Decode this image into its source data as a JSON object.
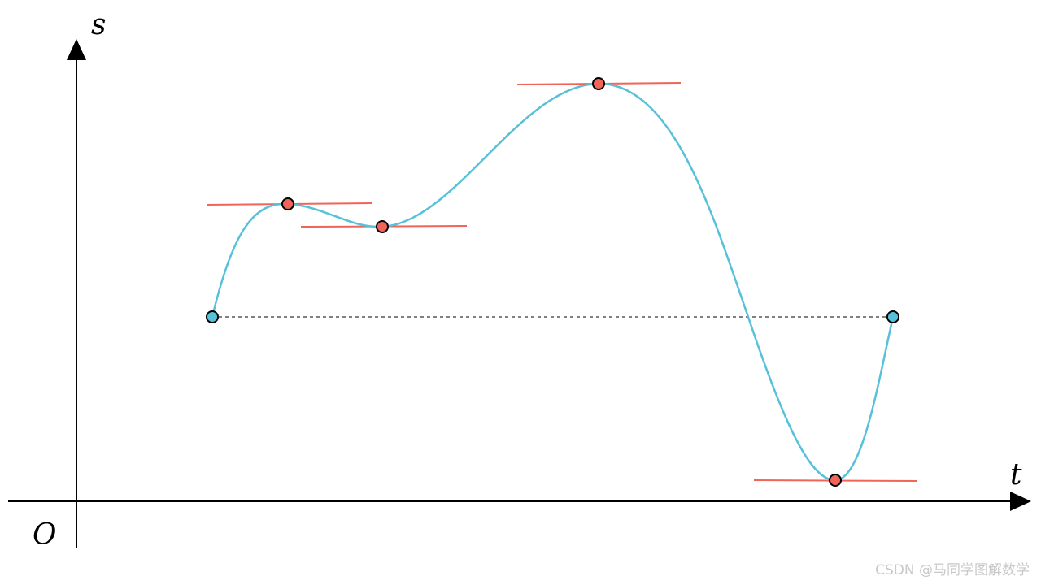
{
  "axes": {
    "x_label": "t",
    "y_label": "s",
    "origin_label": "O"
  },
  "colors": {
    "axis": "#000000",
    "curve": "#56c1d8",
    "tangent": "#f0645a",
    "critical_point_fill": "#f0645a",
    "endpoint_fill": "#56c1d8",
    "dotted_line": "#808080"
  },
  "watermark": "CSDN @马同学图解数学"
}
